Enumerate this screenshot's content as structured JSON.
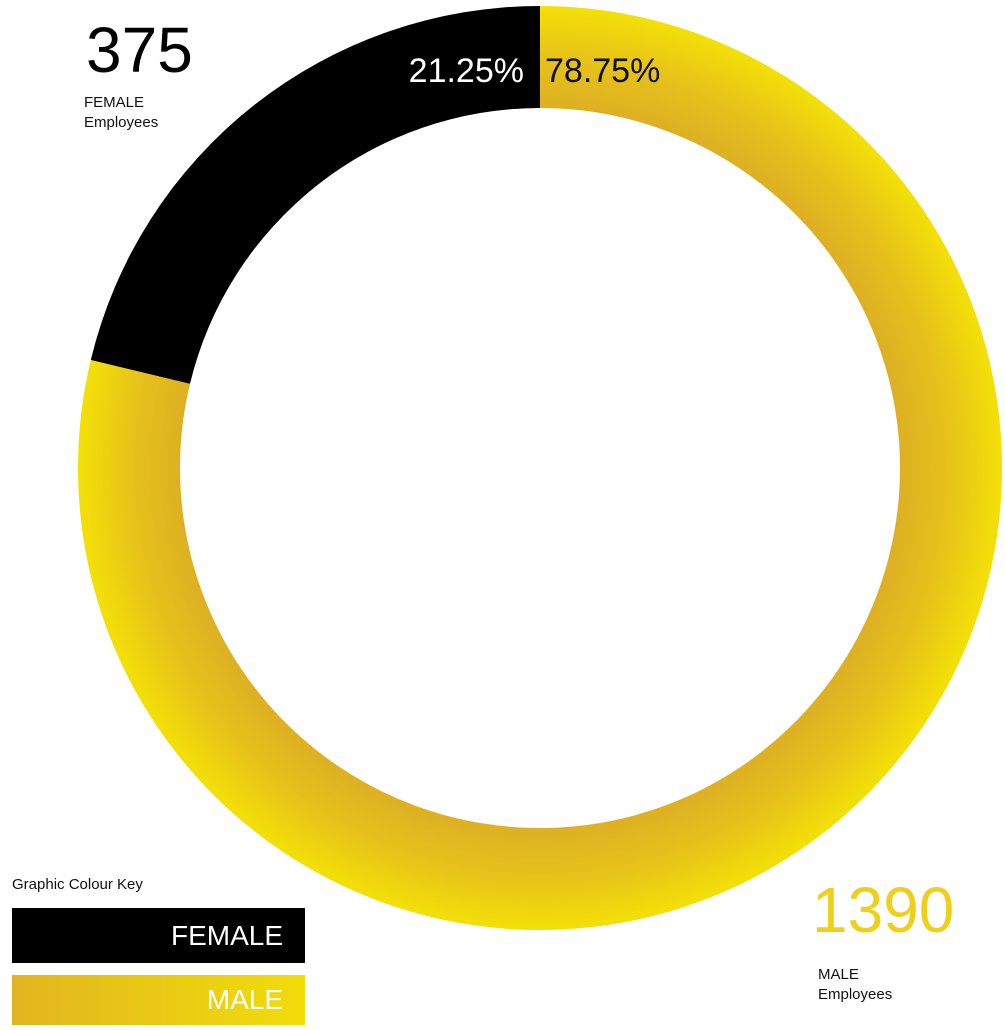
{
  "chart_data": {
    "type": "pie",
    "donut": true,
    "categories": [
      "FEMALE",
      "MALE"
    ],
    "values": [
      375,
      1390
    ],
    "percent_labels": [
      "21.25%",
      "78.75%"
    ],
    "colors": [
      "#000000",
      "#e8c318"
    ]
  },
  "stats": {
    "female": {
      "count": "375",
      "caption": "FEMALE\nEmployees"
    },
    "male": {
      "count": "1390",
      "caption": "MALE\nEmployees"
    }
  },
  "legend": {
    "title": "Graphic Colour Key",
    "items": [
      {
        "label": "FEMALE",
        "color": "#000000"
      },
      {
        "label": "MALE",
        "color": "#e8c318"
      }
    ]
  }
}
